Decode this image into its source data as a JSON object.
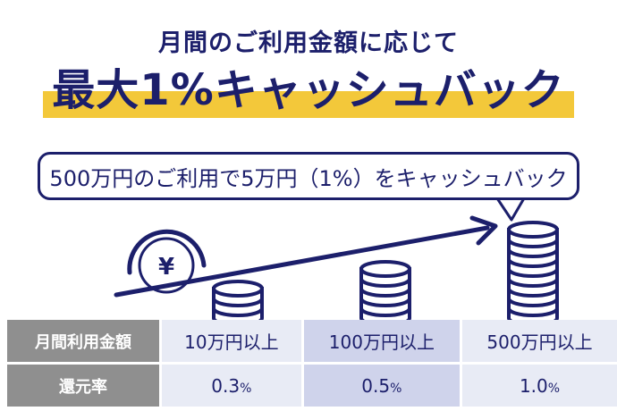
{
  "header": {
    "subtitle": "月間のご利用金額に応じて",
    "headline": "最大1%キャッシュバック"
  },
  "bubble": {
    "text": "500万円のご利用で5万円（1%）をキャッシュバック"
  },
  "illustration": {
    "coin_symbol": "¥"
  },
  "table": {
    "row1_label": "月間利用金額",
    "row2_label": "還元率",
    "tiers": [
      {
        "amount": "10万円以上",
        "rate_num": "0.3",
        "rate_unit": "%"
      },
      {
        "amount": "100万円以上",
        "rate_num": "0.5",
        "rate_unit": "%"
      },
      {
        "amount": "500万円以上",
        "rate_num": "1.0",
        "rate_unit": "%"
      }
    ]
  },
  "colors": {
    "navy": "#1c1f6b",
    "yellow": "#f3c83a",
    "header_gray": "#8f8f8f",
    "cell_light": "#e8ebf5",
    "cell_mid": "#cfd3eb"
  }
}
